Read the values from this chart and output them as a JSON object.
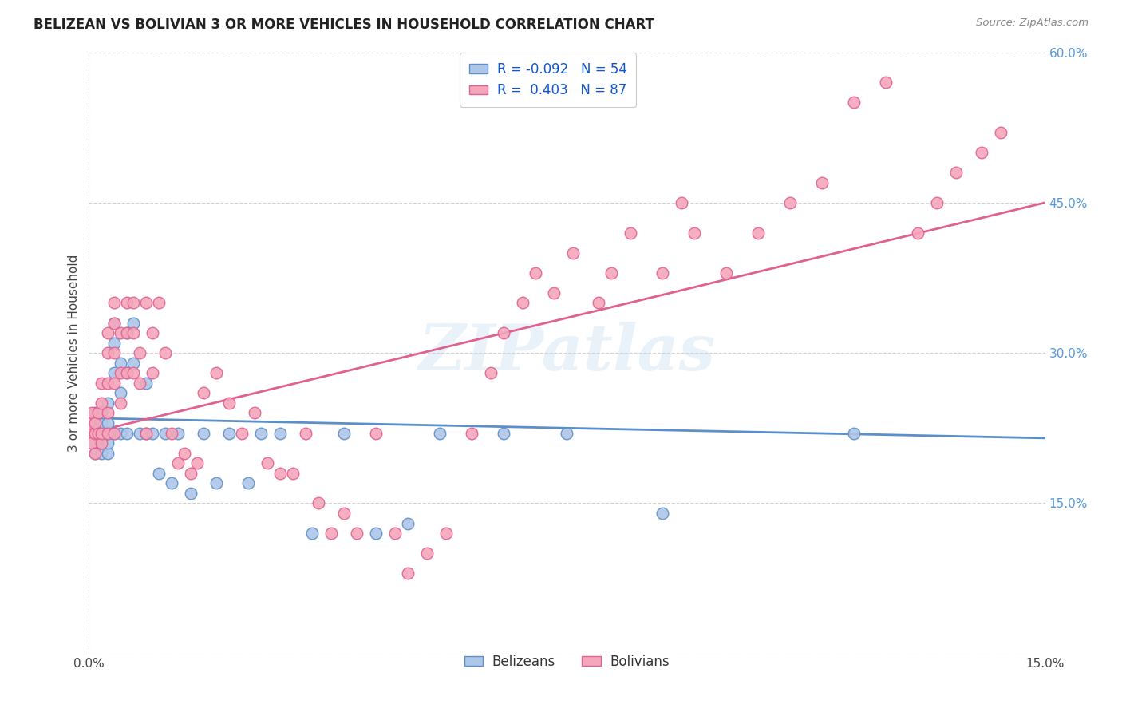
{
  "title": "BELIZEAN VS BOLIVIAN 3 OR MORE VEHICLES IN HOUSEHOLD CORRELATION CHART",
  "source": "Source: ZipAtlas.com",
  "ylabel": "3 or more Vehicles in Household",
  "xlim": [
    0.0,
    0.15
  ],
  "ylim": [
    0.0,
    0.6
  ],
  "watermark": "ZIPatlas",
  "legend_R_bel": "R = -0.092",
  "legend_N_bel": "N = 54",
  "legend_R_bol": "R =  0.403",
  "legend_N_bol": "N = 87",
  "belizean_color": "#aec6e8",
  "bolivian_color": "#f4a7bb",
  "belizean_edge_color": "#5b8fc9",
  "bolivian_edge_color": "#e06090",
  "belizean_line_color": "#5b8fc9",
  "bolivian_line_color": "#e06090",
  "background_color": "#ffffff",
  "belizean_x": [
    0.0,
    0.0,
    0.0005,
    0.001,
    0.001,
    0.001,
    0.001,
    0.0015,
    0.002,
    0.002,
    0.002,
    0.002,
    0.002,
    0.003,
    0.003,
    0.003,
    0.003,
    0.003,
    0.004,
    0.004,
    0.004,
    0.004,
    0.005,
    0.005,
    0.005,
    0.006,
    0.006,
    0.006,
    0.007,
    0.007,
    0.008,
    0.009,
    0.009,
    0.01,
    0.011,
    0.012,
    0.013,
    0.014,
    0.016,
    0.018,
    0.02,
    0.022,
    0.025,
    0.027,
    0.03,
    0.035,
    0.04,
    0.045,
    0.05,
    0.055,
    0.065,
    0.075,
    0.09,
    0.12
  ],
  "belizean_y": [
    0.22,
    0.23,
    0.21,
    0.22,
    0.2,
    0.23,
    0.24,
    0.22,
    0.2,
    0.21,
    0.22,
    0.23,
    0.24,
    0.2,
    0.21,
    0.22,
    0.23,
    0.25,
    0.22,
    0.28,
    0.31,
    0.33,
    0.29,
    0.22,
    0.26,
    0.28,
    0.32,
    0.22,
    0.29,
    0.33,
    0.22,
    0.22,
    0.27,
    0.22,
    0.18,
    0.22,
    0.17,
    0.22,
    0.16,
    0.22,
    0.17,
    0.22,
    0.17,
    0.22,
    0.22,
    0.12,
    0.22,
    0.12,
    0.13,
    0.22,
    0.22,
    0.22,
    0.14,
    0.22
  ],
  "bolivian_x": [
    0.0,
    0.0,
    0.0005,
    0.0005,
    0.001,
    0.001,
    0.001,
    0.0015,
    0.0015,
    0.002,
    0.002,
    0.002,
    0.002,
    0.003,
    0.003,
    0.003,
    0.003,
    0.003,
    0.004,
    0.004,
    0.004,
    0.004,
    0.004,
    0.005,
    0.005,
    0.005,
    0.006,
    0.006,
    0.006,
    0.007,
    0.007,
    0.007,
    0.008,
    0.008,
    0.009,
    0.009,
    0.01,
    0.01,
    0.011,
    0.012,
    0.013,
    0.014,
    0.015,
    0.016,
    0.017,
    0.018,
    0.02,
    0.022,
    0.024,
    0.026,
    0.028,
    0.03,
    0.032,
    0.034,
    0.036,
    0.038,
    0.04,
    0.042,
    0.045,
    0.048,
    0.05,
    0.053,
    0.056,
    0.06,
    0.063,
    0.065,
    0.068,
    0.07,
    0.073,
    0.076,
    0.08,
    0.082,
    0.085,
    0.09,
    0.093,
    0.095,
    0.1,
    0.105,
    0.11,
    0.115,
    0.12,
    0.125,
    0.13,
    0.133,
    0.136,
    0.14,
    0.143
  ],
  "bolivian_y": [
    0.22,
    0.23,
    0.21,
    0.24,
    0.2,
    0.22,
    0.23,
    0.22,
    0.24,
    0.21,
    0.22,
    0.25,
    0.27,
    0.22,
    0.24,
    0.27,
    0.3,
    0.32,
    0.22,
    0.27,
    0.3,
    0.33,
    0.35,
    0.25,
    0.28,
    0.32,
    0.28,
    0.32,
    0.35,
    0.28,
    0.32,
    0.35,
    0.27,
    0.3,
    0.22,
    0.35,
    0.28,
    0.32,
    0.35,
    0.3,
    0.22,
    0.19,
    0.2,
    0.18,
    0.19,
    0.26,
    0.28,
    0.25,
    0.22,
    0.24,
    0.19,
    0.18,
    0.18,
    0.22,
    0.15,
    0.12,
    0.14,
    0.12,
    0.22,
    0.12,
    0.08,
    0.1,
    0.12,
    0.22,
    0.28,
    0.32,
    0.35,
    0.38,
    0.36,
    0.4,
    0.35,
    0.38,
    0.42,
    0.38,
    0.45,
    0.42,
    0.38,
    0.42,
    0.45,
    0.47,
    0.55,
    0.57,
    0.42,
    0.45,
    0.48,
    0.5,
    0.52
  ]
}
